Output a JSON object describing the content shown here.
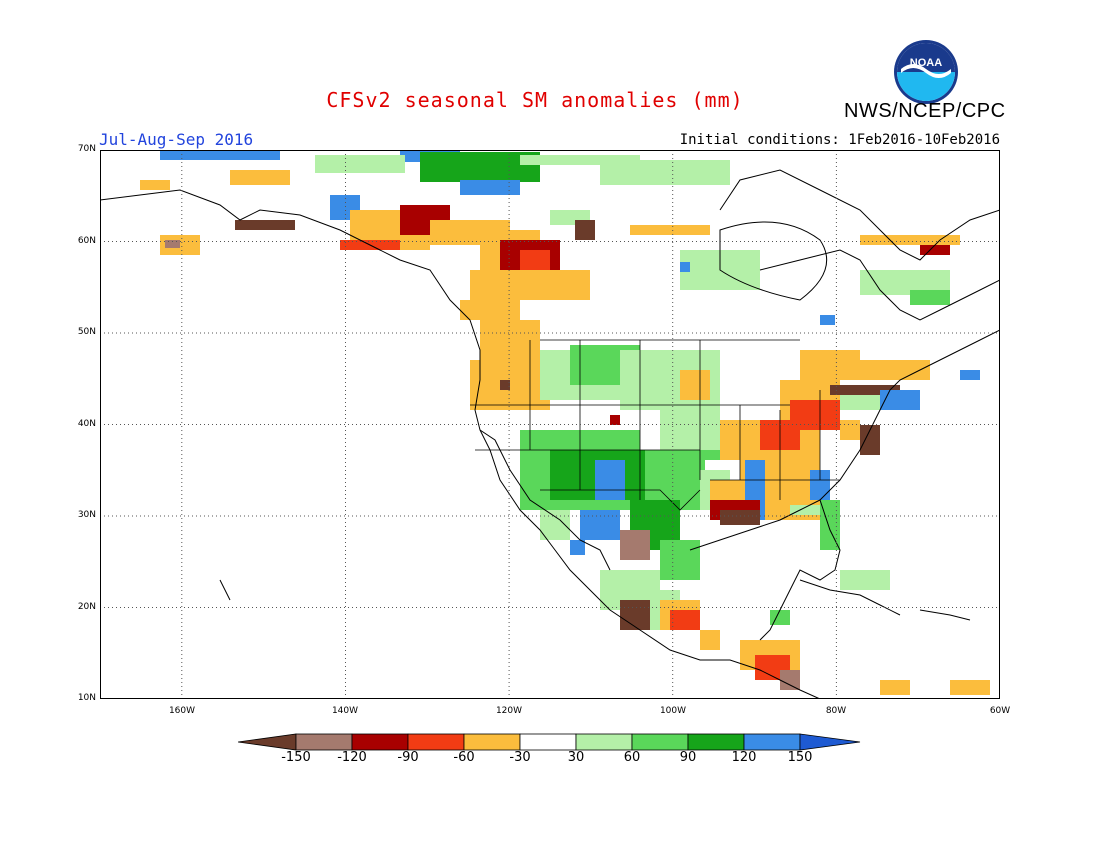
{
  "header": {
    "title": "CFSv2 seasonal SM anomalies (mm)",
    "agency": "NWS/NCEP/CPC",
    "season": "Jul-Aug-Sep 2016",
    "initial_conditions": "Initial conditions: 1Feb2016-10Feb2016",
    "logo_text": "NOAA"
  },
  "map": {
    "lat_labels": [
      "70N",
      "60N",
      "50N",
      "40N",
      "30N",
      "20N",
      "10N"
    ],
    "lon_labels": [
      "160W",
      "140W",
      "120W",
      "100W",
      "80W",
      "60W"
    ],
    "lat_range": [
      10,
      70
    ],
    "lon_range": [
      -170,
      -60
    ]
  },
  "colorbar": {
    "ticks": [
      "-150",
      "-120",
      "-90",
      "-60",
      "-30",
      "30",
      "60",
      "90",
      "120",
      "150"
    ],
    "colors": [
      "#6a3b2a",
      "#a57a6e",
      "#a80000",
      "#f23c14",
      "#fbbd3d",
      "#ffffff",
      "#b4f0a8",
      "#5ad75a",
      "#16a51a",
      "#3a8ce6",
      "#1e5ad2"
    ]
  }
}
